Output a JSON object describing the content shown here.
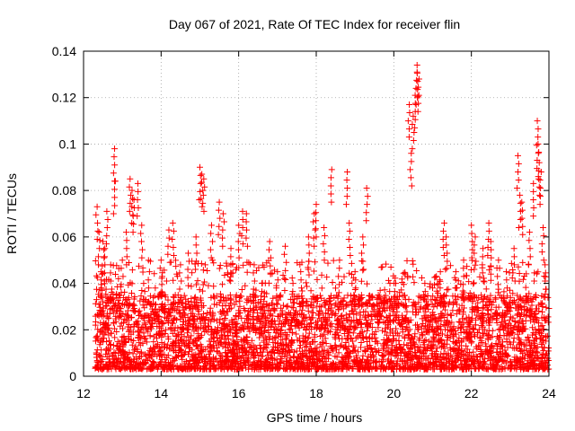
{
  "chart_data": {
    "type": "scatter",
    "title": "Day 067 of 2021, Rate Of TEC Index for receiver flin",
    "xlabel": "GPS time / hours",
    "ylabel": "ROTI / TECUs",
    "xlim": [
      12,
      24
    ],
    "ylim": [
      0,
      0.14
    ],
    "xticks": [
      12,
      14,
      16,
      18,
      20,
      22,
      24
    ],
    "yticks": [
      0,
      0.02,
      0.04,
      0.06,
      0.08,
      0.1,
      0.12,
      0.14
    ],
    "ytick_labels": [
      "0",
      "0.02",
      "0.04",
      "0.06",
      "0.08",
      "0.1",
      "0.12",
      "0.14"
    ],
    "grid": true,
    "legend": "none",
    "marker": "plus",
    "series_color": "#ff0000",
    "series": [
      {
        "name": "ROTI",
        "points": [
          [
            12.35,
            0.073
          ],
          [
            12.4,
            0.062
          ],
          [
            12.45,
            0.045
          ],
          [
            12.5,
            0.058
          ],
          [
            12.55,
            0.055
          ],
          [
            12.6,
            0.071
          ],
          [
            12.7,
            0.048
          ],
          [
            12.8,
            0.098
          ],
          [
            12.8,
            0.084
          ],
          [
            12.9,
            0.042
          ],
          [
            13.0,
            0.05
          ],
          [
            13.1,
            0.062
          ],
          [
            13.2,
            0.085
          ],
          [
            13.25,
            0.08
          ],
          [
            13.3,
            0.076
          ],
          [
            13.4,
            0.083
          ],
          [
            13.5,
            0.065
          ],
          [
            13.55,
            0.04
          ],
          [
            13.7,
            0.045
          ],
          [
            13.85,
            0.038
          ],
          [
            14.0,
            0.05
          ],
          [
            14.2,
            0.063
          ],
          [
            14.3,
            0.066
          ],
          [
            14.5,
            0.048
          ],
          [
            14.7,
            0.053
          ],
          [
            14.9,
            0.06
          ],
          [
            15.0,
            0.09
          ],
          [
            15.05,
            0.087
          ],
          [
            15.1,
            0.085
          ],
          [
            15.3,
            0.065
          ],
          [
            15.5,
            0.075
          ],
          [
            15.6,
            0.07
          ],
          [
            15.8,
            0.055
          ],
          [
            16.0,
            0.065
          ],
          [
            16.1,
            0.071
          ],
          [
            16.2,
            0.07
          ],
          [
            16.4,
            0.048
          ],
          [
            16.6,
            0.04
          ],
          [
            16.8,
            0.058
          ],
          [
            17.0,
            0.045
          ],
          [
            17.2,
            0.056
          ],
          [
            17.4,
            0.04
          ],
          [
            17.6,
            0.045
          ],
          [
            17.8,
            0.06
          ],
          [
            17.95,
            0.07
          ],
          [
            18.0,
            0.074
          ],
          [
            18.2,
            0.064
          ],
          [
            18.4,
            0.089
          ],
          [
            18.6,
            0.05
          ],
          [
            18.8,
            0.088
          ],
          [
            18.85,
            0.066
          ],
          [
            19.0,
            0.045
          ],
          [
            19.2,
            0.06
          ],
          [
            19.3,
            0.081
          ],
          [
            19.6,
            0.035
          ],
          [
            19.9,
            0.04
          ],
          [
            20.05,
            0.04
          ],
          [
            20.4,
            0.117
          ],
          [
            20.45,
            0.096
          ],
          [
            20.5,
            0.112
          ],
          [
            20.55,
            0.121
          ],
          [
            20.6,
            0.131
          ],
          [
            20.6,
            0.134
          ],
          [
            20.65,
            0.128
          ],
          [
            20.8,
            0.04
          ],
          [
            21.0,
            0.038
          ],
          [
            21.2,
            0.045
          ],
          [
            21.3,
            0.066
          ],
          [
            21.35,
            0.06
          ],
          [
            21.6,
            0.045
          ],
          [
            21.8,
            0.05
          ],
          [
            22.0,
            0.065
          ],
          [
            22.1,
            0.06
          ],
          [
            22.3,
            0.055
          ],
          [
            22.45,
            0.066
          ],
          [
            22.5,
            0.058
          ],
          [
            22.7,
            0.05
          ],
          [
            22.9,
            0.045
          ],
          [
            23.1,
            0.055
          ],
          [
            23.2,
            0.095
          ],
          [
            23.25,
            0.078
          ],
          [
            23.3,
            0.075
          ],
          [
            23.5,
            0.062
          ],
          [
            23.6,
            0.083
          ],
          [
            23.7,
            0.11
          ],
          [
            23.72,
            0.1
          ],
          [
            23.75,
            0.092
          ],
          [
            23.8,
            0.088
          ],
          [
            23.85,
            0.064
          ],
          [
            23.9,
            0.048
          ]
        ]
      }
    ],
    "dense_band": {
      "description_for_rendering": "dense cloud of low ROTI values",
      "x_range": [
        12.3,
        24.0
      ],
      "y_range": [
        0.003,
        0.035
      ]
    }
  }
}
